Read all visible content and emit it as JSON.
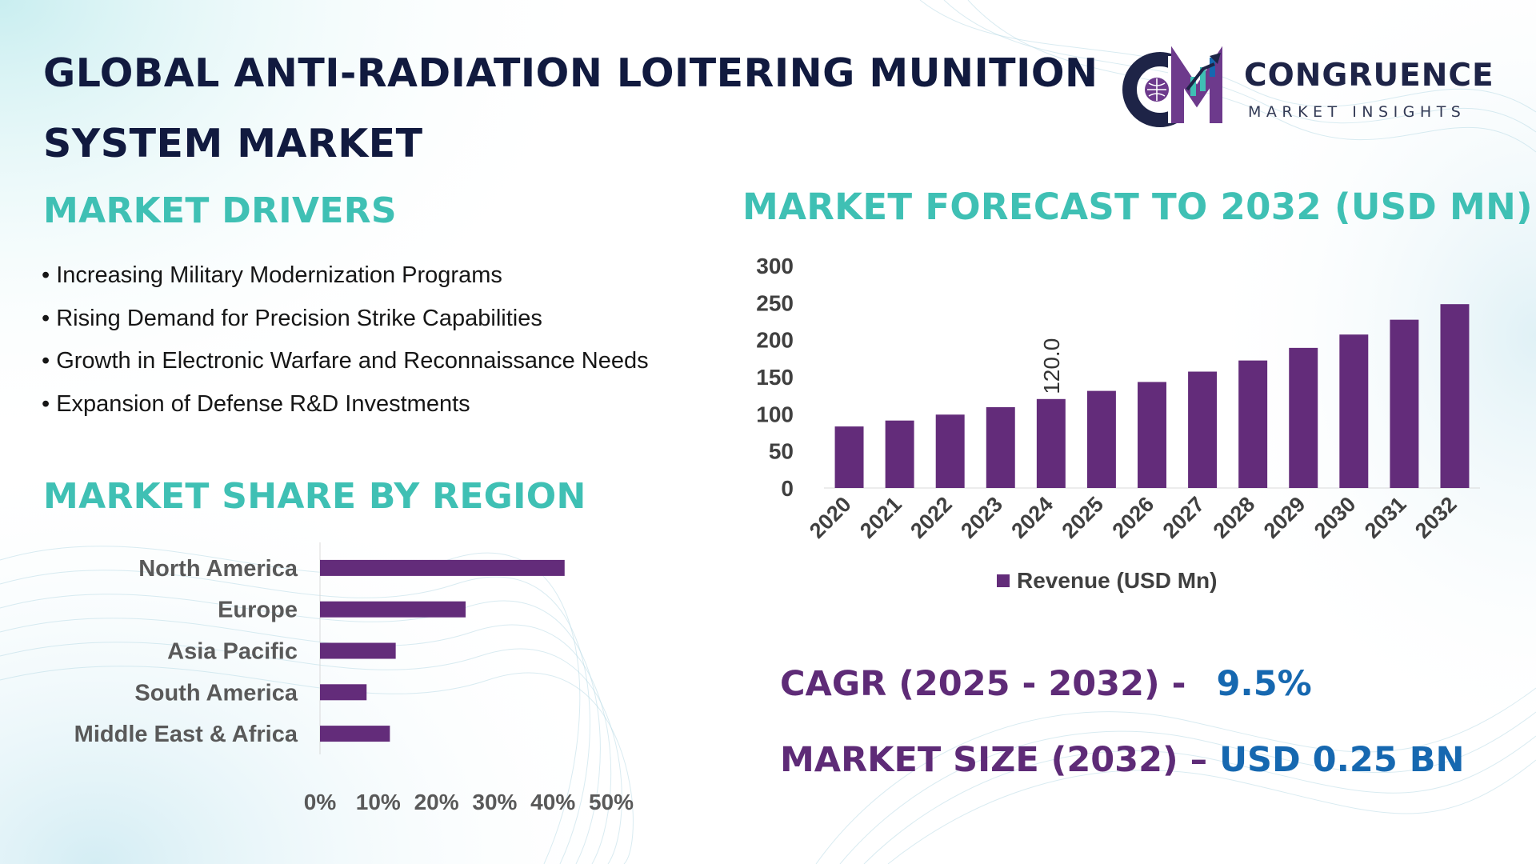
{
  "header": {
    "title": "GLOBAL ANTI-RADIATION LOITERING MUNITION SYSTEM MARKET"
  },
  "logo": {
    "initials": "CM",
    "name": "CONGRUENCE",
    "tagline": "MARKET INSIGHTS"
  },
  "drivers": {
    "title": "MARKET DRIVERS",
    "items": [
      "• Increasing Military Modernization Programs",
      "• Rising Demand for Precision Strike Capabilities",
      "• Growth in Electronic Warfare and Reconnaissance Needs",
      "• Expansion of Defense R&D Investments"
    ]
  },
  "share": {
    "title": "MARKET SHARE BY REGION"
  },
  "forecast": {
    "title": "MARKET FORECAST TO 2032 (USD MN)"
  },
  "kpis": {
    "cagr_label": "CAGR (2025 - 2032) -",
    "cagr_value": "9.5%",
    "size_label": "MARKET SIZE (2032) –",
    "size_value": "USD 0.25 BN"
  },
  "colors": {
    "bar": "#632c7a",
    "accent": "#3fc0b4",
    "title": "#111a3f",
    "kpi_label": "#5e2b77",
    "kpi_value": "#1668b0"
  },
  "chart_data": [
    {
      "type": "bar",
      "orientation": "vertical",
      "title": "MARKET FORECAST TO 2032 (USD MN)",
      "categories": [
        "2020",
        "2021",
        "2022",
        "2023",
        "2024",
        "2025",
        "2026",
        "2027",
        "2028",
        "2029",
        "2030",
        "2031",
        "2032"
      ],
      "series": [
        {
          "name": "Revenue (USD Mn)",
          "values": [
            83,
            91,
            99,
            109,
            120,
            131,
            143,
            157,
            172,
            189,
            207,
            227,
            248
          ]
        }
      ],
      "data_labels": [
        {
          "category": "2024",
          "text": "120.0"
        }
      ],
      "yticks": [
        "0",
        "50",
        "100",
        "150",
        "200",
        "250",
        "300"
      ],
      "ylim": [
        0,
        300
      ],
      "legend": "bottom",
      "grid": false
    },
    {
      "type": "bar",
      "orientation": "horizontal",
      "title": "MARKET SHARE BY REGION",
      "categories": [
        "North America",
        "Europe",
        "Asia Pacific",
        "South America",
        "Middle East & Africa"
      ],
      "values": [
        42,
        25,
        13,
        8,
        12
      ],
      "xticks": [
        "0%",
        "10%",
        "20%",
        "30%",
        "40%",
        "50%"
      ],
      "xlim": [
        0,
        50
      ],
      "grid": false
    }
  ]
}
